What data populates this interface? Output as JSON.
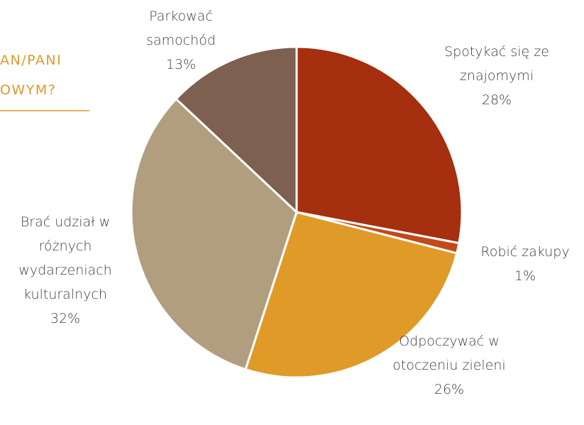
{
  "chart_data": {
    "type": "pie",
    "title_lines": [
      "AN/PANI",
      "OWYM?"
    ],
    "categories": [
      "Spotykać się ze znajomymi",
      "Robić zakupy",
      "Odpoczywać w otoczeniu zieleni",
      "Brać udział w różnych wydarzeniach kulturalnych",
      "Parkować samochód"
    ],
    "values": [
      28,
      1,
      26,
      32,
      13
    ],
    "value_labels": [
      "28%",
      "1%",
      "26%",
      "32%",
      "13%"
    ],
    "colors": [
      "#a52f0e",
      "#c2491a",
      "#e09a28",
      "#b19e7e",
      "#7d6050"
    ]
  }
}
